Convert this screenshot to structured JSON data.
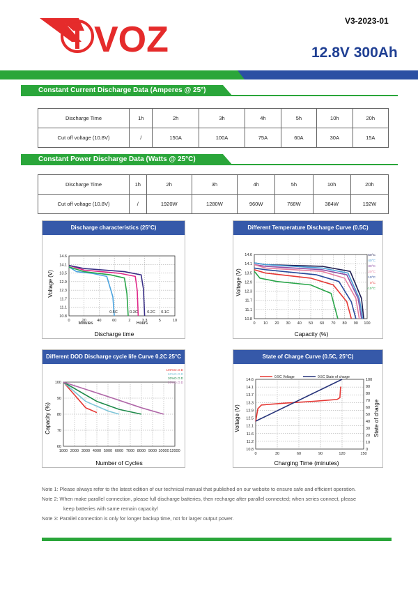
{
  "header": {
    "version": "V3-2023-01",
    "brand": "VOZ",
    "product_title": "12.8V 300Ah"
  },
  "colors": {
    "green": "#2aa63a",
    "blue": "#2b4fa3",
    "panel_blue": "#3659a9",
    "logo_red": "#e52b2b"
  },
  "current_section": {
    "title": "Constant Current Discharge Data (Amperes @ 25°)",
    "row1": [
      "Discharge Time",
      "1h",
      "2h",
      "3h",
      "4h",
      "5h",
      "10h",
      "20h"
    ],
    "row2": [
      "Cut off voltage (10.8V)",
      "/",
      "150A",
      "100A",
      "75A",
      "60A",
      "30A",
      "15A"
    ]
  },
  "power_section": {
    "title": "Constant Power Discharge Data (Watts @ 25°C)",
    "row1": [
      "Discharge Time",
      "1h",
      "2h",
      "3h",
      "4h",
      "5h",
      "10h",
      "20h"
    ],
    "row2": [
      "Cut off voltage (10.8V)",
      "/",
      "1920W",
      "1280W",
      "960W",
      "768W",
      "384W",
      "192W"
    ]
  },
  "charts": {
    "c1": {
      "title": "Discharge characteristics (25°C)",
      "ylabel": "Voltage (V)",
      "xlabel": "Discharge time",
      "xunit_left": "Minutes",
      "xunit_right": "Hours"
    },
    "c2": {
      "title": "Different Temperature Discharge Curve (0.5C)",
      "ylabel": "Voltage (V)",
      "xlabel": "Capacity (%)"
    },
    "c3": {
      "title": "Different DOD Discharge cycle life Curve 0.2C 25°C",
      "ylabel": "Capacity (%)",
      "xlabel": "Number of Cycles"
    },
    "c4": {
      "title": "State of Charge Curve (0.5C, 25°C)",
      "ylabel": "Voltage (V)",
      "y2label": "State of charge",
      "xlabel": "Charging Time (minutes)"
    }
  },
  "chart_data": [
    {
      "type": "line",
      "title": "Discharge characteristics (25°C)",
      "xlabel": "Discharge time",
      "ylabel": "Voltage (V)",
      "ylim": [
        10.8,
        14.6
      ],
      "y_ticks": [
        "14.6",
        "14.1",
        "13.5",
        "12.9",
        "12.3",
        "11.7",
        "11.1",
        "10.8"
      ],
      "x_ticks": [
        "0",
        "20",
        "40",
        "60",
        "2",
        "3.3",
        "5",
        "10"
      ],
      "series": [
        {
          "name": "0.5C",
          "color": "#4aa3df",
          "points": [
            [
              0,
              13.9
            ],
            [
              10,
              13.6
            ],
            [
              30,
              13.5
            ],
            [
              50,
              13.3
            ],
            [
              58,
              12.0
            ],
            [
              60,
              10.8
            ]
          ]
        },
        {
          "name": "0.3C",
          "color": "#2aa64a",
          "points": [
            [
              0,
              13.9
            ],
            [
              20,
              13.6
            ],
            [
              55,
              13.4
            ],
            [
              100,
              13.2
            ],
            [
              110,
              12.2
            ],
            [
              115,
              10.8
            ]
          ]
        },
        {
          "name": "0.2C",
          "color": "#e0298a",
          "points": [
            [
              0,
              14.0
            ],
            [
              20,
              13.7
            ],
            [
              80,
              13.5
            ],
            [
              150,
              13.3
            ],
            [
              160,
              12.4
            ],
            [
              165,
              10.8
            ]
          ]
        },
        {
          "name": "0.1C",
          "color": "#3a2f86",
          "points": [
            [
              0,
              14.0
            ],
            [
              20,
              13.8
            ],
            [
              100,
              13.6
            ],
            [
              180,
              13.4
            ],
            [
              192,
              12.5
            ],
            [
              198,
              10.8
            ]
          ]
        }
      ]
    },
    {
      "type": "line",
      "title": "Different Temperature Discharge Curve (0.5C)",
      "xlabel": "Capacity (%)",
      "ylabel": "Voltage (V)",
      "ylim": [
        10.8,
        14.6
      ],
      "xlim": [
        0,
        100
      ],
      "y_ticks": [
        "14.6",
        "14.1",
        "13.5",
        "12.9",
        "12.3",
        "11.7",
        "11.1",
        "10.8"
      ],
      "x_ticks": [
        "0",
        "10",
        "20",
        "30",
        "40",
        "50",
        "60",
        "70",
        "80",
        "90",
        "100"
      ],
      "legend": [
        "50°C",
        "40°C",
        "30°C",
        "20°C",
        "10°C",
        "0°C",
        "-10°C"
      ],
      "series": [
        {
          "name": "50°C",
          "color": "#1d1b4f",
          "points": [
            [
              0,
              14.1
            ],
            [
              10,
              14.0
            ],
            [
              60,
              13.9
            ],
            [
              85,
              13.6
            ],
            [
              95,
              12.0
            ],
            [
              97,
              10.8
            ]
          ]
        },
        {
          "name": "40°C",
          "color": "#4a9ed8",
          "points": [
            [
              0,
              14.1
            ],
            [
              10,
              14.0
            ],
            [
              60,
              13.8
            ],
            [
              83,
              13.5
            ],
            [
              93,
              12.0
            ],
            [
              96,
              10.8
            ]
          ]
        },
        {
          "name": "30°C",
          "color": "#8e4fa6",
          "points": [
            [
              0,
              14.0
            ],
            [
              10,
              13.9
            ],
            [
              60,
              13.7
            ],
            [
              82,
              13.4
            ],
            [
              92,
              12.0
            ],
            [
              95,
              10.8
            ]
          ]
        },
        {
          "name": "20°C",
          "color": "#e67ea0",
          "points": [
            [
              0,
              14.0
            ],
            [
              10,
              13.8
            ],
            [
              60,
              13.6
            ],
            [
              80,
              13.2
            ],
            [
              90,
              12.0
            ],
            [
              93,
              10.8
            ]
          ]
        },
        {
          "name": "10°C",
          "color": "#294a9c",
          "points": [
            [
              0,
              13.8
            ],
            [
              10,
              13.7
            ],
            [
              55,
              13.4
            ],
            [
              75,
              13.0
            ],
            [
              86,
              11.8
            ],
            [
              90,
              10.8
            ]
          ]
        },
        {
          "name": "0°C",
          "color": "#e53935",
          "points": [
            [
              0,
              13.7
            ],
            [
              10,
              13.5
            ],
            [
              50,
              13.2
            ],
            [
              70,
              12.8
            ],
            [
              82,
              11.8
            ],
            [
              86,
              10.8
            ]
          ]
        },
        {
          "name": "-10°C",
          "color": "#2aa64a",
          "points": [
            [
              0,
              13.6
            ],
            [
              5,
              13.2
            ],
            [
              20,
              13.0
            ],
            [
              50,
              12.8
            ],
            [
              68,
              12.3
            ],
            [
              74,
              10.8
            ]
          ]
        }
      ]
    },
    {
      "type": "line",
      "title": "Different DOD Discharge cycle life Curve 0.2C 25°C",
      "xlabel": "Number of Cycles",
      "ylabel": "Capacity (%)",
      "ylim": [
        60,
        100
      ],
      "xlim": [
        1000,
        12000
      ],
      "y_ticks": [
        "100",
        "90",
        "80",
        "70",
        "60"
      ],
      "x_ticks": [
        "1000",
        "2000",
        "3000",
        "4000",
        "5000",
        "6000",
        "7000",
        "8000",
        "9000",
        "10000",
        "12000"
      ],
      "legend": [
        "100%D.O.D",
        "60%D.O.D",
        "30%D.O.D",
        "20%D.O.D"
      ],
      "series": [
        {
          "name": "100%D.O.D",
          "color": "#e53935",
          "points": [
            [
              1000,
              100
            ],
            [
              2000,
              92
            ],
            [
              3000,
              84
            ],
            [
              4000,
              81
            ]
          ]
        },
        {
          "name": "60%D.O.D",
          "color": "#7ec6d9",
          "points": [
            [
              1000,
              100
            ],
            [
              3000,
              88
            ],
            [
              5000,
              82
            ],
            [
              6000,
              80
            ]
          ]
        },
        {
          "name": "30%D.O.D",
          "color": "#1e8a4a",
          "points": [
            [
              1000,
              100
            ],
            [
              4000,
              88
            ],
            [
              6000,
              83
            ],
            [
              8000,
              80
            ]
          ]
        },
        {
          "name": "20%D.O.D",
          "color": "#b067a8",
          "points": [
            [
              1000,
              100
            ],
            [
              5000,
              91
            ],
            [
              8000,
              84
            ],
            [
              10000,
              80
            ]
          ]
        }
      ]
    },
    {
      "type": "line",
      "title": "State of Charge Curve (0.5C, 25°C)",
      "xlabel": "Charging Time (minutes)",
      "ylabel": "Voltage (V)",
      "y2label": "State of charge",
      "ylim": [
        10.8,
        14.6
      ],
      "y2lim": [
        0,
        100
      ],
      "xlim": [
        0,
        150
      ],
      "y_ticks": [
        "14.6",
        "14.1",
        "13.7",
        "13.3",
        "12.9",
        "12.5",
        "12.1",
        "11.6",
        "11.2",
        "10.8"
      ],
      "y2_ticks": [
        "100",
        "90",
        "80",
        "70",
        "60",
        "50",
        "40",
        "30",
        "20",
        "10",
        "0"
      ],
      "x_ticks": [
        "0",
        "30",
        "60",
        "90",
        "120",
        "150"
      ],
      "legend": [
        "0.5C Voltage",
        "0.5C State of charge"
      ],
      "series": [
        {
          "name": "0.5C Voltage",
          "color": "#e53935",
          "axis": "left",
          "points": [
            [
              0,
              12.3
            ],
            [
              3,
              13.0
            ],
            [
              8,
              13.2
            ],
            [
              40,
              13.3
            ],
            [
              80,
              13.4
            ],
            [
              113,
              13.5
            ],
            [
              117,
              13.6
            ],
            [
              118,
              14.2
            ]
          ]
        },
        {
          "name": "0.5C State of charge",
          "color": "#27347a",
          "axis": "right",
          "points": [
            [
              0,
              40
            ],
            [
              120,
              100
            ]
          ]
        }
      ]
    }
  ],
  "notes": [
    "Note 1: Please always refer to the latest edition of our technical manual that published on our website to ensure safe and efficient operation.",
    "Note 2: When make parallel connection, please full discharge batteries, then recharge after parallel connected; when series connect, please",
    "keep batteries with same remain capacity/",
    "Note 3: Parallel connection is only for longer backup time, not for larger output power."
  ]
}
